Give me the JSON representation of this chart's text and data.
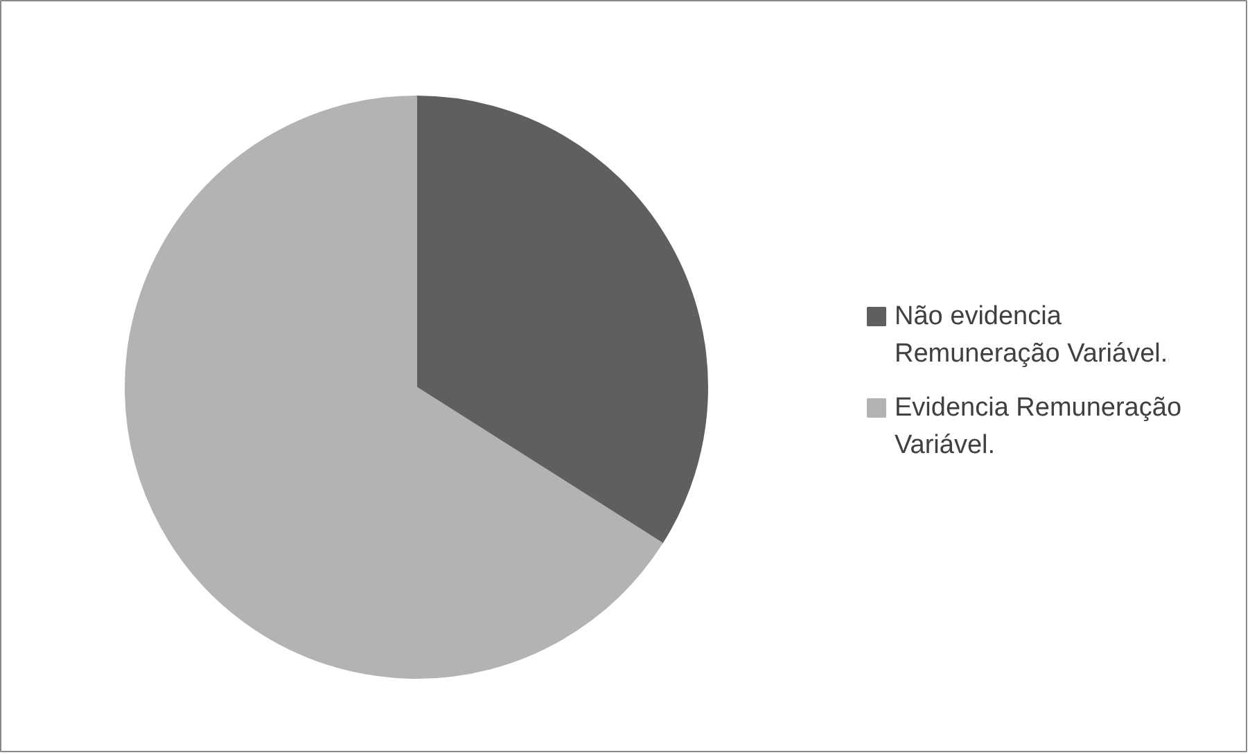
{
  "chart_data": {
    "type": "pie",
    "categories": [
      "Não evidencia Remuneração Variável.",
      "Evidencia Remuneração Variável."
    ],
    "values": [
      34,
      66
    ],
    "colors": [
      "#5f5f5f",
      "#b3b3b3"
    ],
    "legend": "right"
  }
}
